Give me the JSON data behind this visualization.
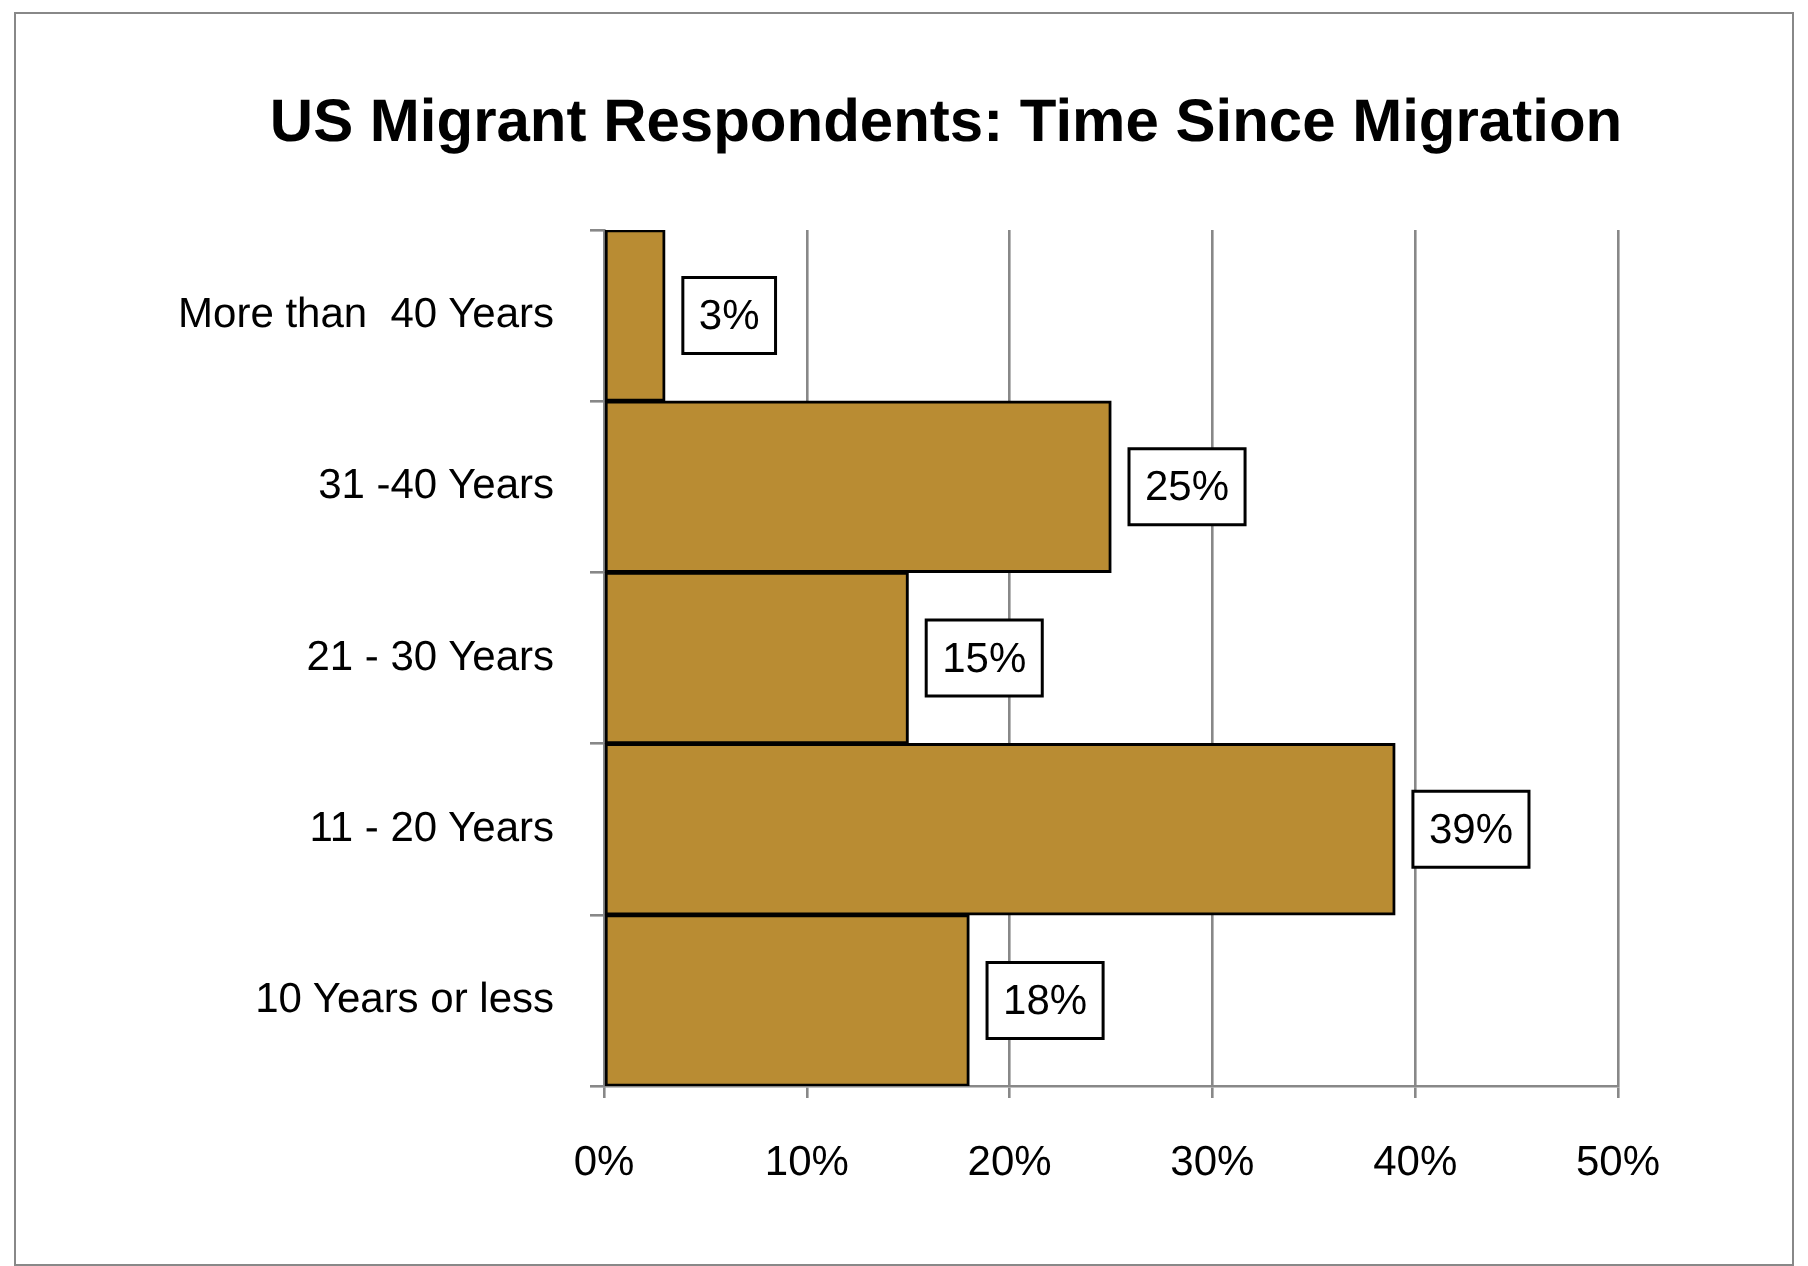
{
  "chart_data": {
    "type": "bar",
    "orientation": "horizontal",
    "title": "US Migrant Respondents: Time Since Migration",
    "categories": [
      "More than  40 Years",
      "31 -40 Years",
      "21 - 30 Years",
      "11 - 20 Years",
      "10 Years or less"
    ],
    "values": [
      3,
      25,
      15,
      39,
      18
    ],
    "value_labels": [
      "3%",
      "25%",
      "15%",
      "39%",
      "18%"
    ],
    "color": "#b98c33",
    "xlim": [
      0,
      50
    ],
    "xticks": [
      {
        "value": 0,
        "label": "0%"
      },
      {
        "value": 10,
        "label": "10%"
      },
      {
        "value": 20,
        "label": "20%"
      },
      {
        "value": 30,
        "label": "30%"
      },
      {
        "value": 40,
        "label": "40%"
      },
      {
        "value": 50,
        "label": "50%"
      }
    ],
    "grid": "x"
  }
}
